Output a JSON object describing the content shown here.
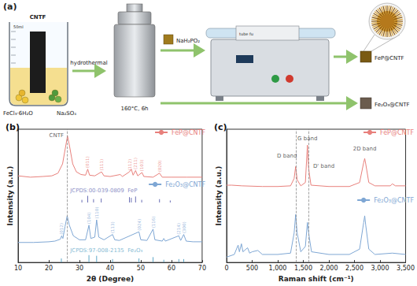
{
  "diagram": {
    "panel_label": "(a)",
    "beaker_label": "CNTF",
    "volume": "50ml",
    "reagents": [
      "FeCl₃·6H₂O",
      "Na₂SO₄"
    ],
    "process": "hydrothermal",
    "conditions": "160°C, 6h",
    "phosphorus_source": "NaH₂PO₂",
    "furnace_label": "tube fu",
    "products": [
      "FeP@CNTF",
      "Fe₂O₃@CNTF"
    ]
  },
  "chart_data": [
    {
      "type": "line",
      "panel_label": "(b)",
      "x_label": "2θ (Degree)",
      "y_label": "Intensity (a.u.)",
      "xlim": [
        10,
        70
      ],
      "xticks": [
        10,
        20,
        30,
        40,
        50,
        60,
        70
      ],
      "ylim": [
        0,
        100
      ],
      "tick_labels": "x",
      "grid": false,
      "legend": "upper right",
      "guides": [
        26
      ],
      "annotations": [
        {
          "text": "CNTF",
          "x": 22.5,
          "y": 95
        }
      ],
      "series": [
        {
          "name": "FeP@CNTF",
          "color": "#e8807c",
          "x": [
            10,
            14,
            18,
            21,
            23,
            24.5,
            25.5,
            26.1,
            26.8,
            27.8,
            29,
            30.5,
            32,
            32.7,
            33.3,
            35,
            37.2,
            38,
            40,
            43.3,
            44,
            46.3,
            46.9,
            47.5,
            48.3,
            49,
            50.4,
            51,
            54,
            56.1,
            57,
            60,
            65,
            70
          ],
          "values": [
            65,
            64,
            64.5,
            65,
            67,
            74,
            87,
            95,
            87,
            74,
            68,
            66,
            65.5,
            70,
            65.5,
            65,
            68,
            65,
            64.5,
            66,
            64.5,
            68,
            70,
            65.5,
            69,
            65,
            67.5,
            64.5,
            64,
            67,
            64,
            64,
            64,
            64
          ],
          "peak_labels": [
            {
              "text": "(011)",
              "x": 32.7,
              "y": 70
            },
            {
              "text": "(111)",
              "x": 37.2,
              "y": 68
            },
            {
              "text": "(112)",
              "x": 46.3,
              "y": 68
            },
            {
              "text": "(211)",
              "x": 48.3,
              "y": 69
            },
            {
              "text": "(103)",
              "x": 50.4,
              "y": 67.5
            },
            {
              "text": "(020)",
              "x": 56.1,
              "y": 67
            }
          ]
        },
        {
          "name": "Fe₂O₃@CNTF",
          "color": "#7fa7d4",
          "x": [
            10,
            15,
            20,
            22,
            23.8,
            24.2,
            24.6,
            25.3,
            26,
            26.7,
            28,
            30,
            32,
            33.1,
            33.7,
            35,
            35.6,
            36.3,
            38,
            40.8,
            41.5,
            43,
            49.4,
            50,
            52,
            54,
            54.6,
            57,
            57.5,
            58,
            62.4,
            63,
            64,
            64.8,
            67,
            70
          ],
          "values": [
            15,
            15,
            15.5,
            16,
            17.5,
            20,
            18,
            27,
            35,
            28,
            20,
            17,
            17,
            28,
            18,
            19,
            32,
            19,
            17,
            21,
            17,
            16.5,
            23,
            17,
            16.5,
            25,
            17,
            16,
            18,
            16,
            20,
            16.5,
            21,
            16,
            15.5,
            15.5
          ],
          "peak_labels": [
            {
              "text": "(012)",
              "x": 24.2,
              "y": 20
            },
            {
              "text": "(104)",
              "x": 33.1,
              "y": 28
            },
            {
              "text": "(110)",
              "x": 35.6,
              "y": 32
            },
            {
              "text": "(113)",
              "x": 40.8,
              "y": 21
            },
            {
              "text": "(024)",
              "x": 49.4,
              "y": 23
            },
            {
              "text": "(116)",
              "x": 54,
              "y": 25
            },
            {
              "text": "(214)",
              "x": 62.4,
              "y": 20
            },
            {
              "text": "(300)",
              "x": 64,
              "y": 21
            }
          ]
        }
      ],
      "references": [
        {
          "label": "JCPDS:00-039-0809  FeP",
          "label_x": 27,
          "label_y": 54,
          "color": "#6a6fb5",
          "base": 45,
          "x": [
            30.8,
            32.7,
            34.6,
            37.1,
            46.3,
            46.9,
            48.3,
            50.3,
            56.1,
            59.6
          ],
          "values": [
            47,
            50,
            47.5,
            48,
            49,
            48.5,
            49.5,
            47,
            47.5,
            46.5
          ]
        },
        {
          "label": "JCPDS:97-008-2135  Fe₂O₃",
          "label_x": 27,
          "label_y": 9,
          "color": "#5fa8c8",
          "base": 0,
          "x": [
            24.1,
            33.1,
            35.6,
            40.8,
            49.4,
            54.0,
            57.5,
            62.4,
            64.0
          ],
          "values": [
            3,
            5.5,
            5,
            2.5,
            3,
            4,
            2,
            2.5,
            2.5
          ]
        }
      ]
    },
    {
      "type": "line",
      "panel_label": "(c)",
      "x_label": "Raman shift (cm⁻¹)",
      "y_label": "Intensity (a.u.)",
      "xlim": [
        0,
        3500
      ],
      "xticks": [
        0,
        500,
        1000,
        1500,
        2000,
        2500,
        3000,
        3500
      ],
      "ylim": [
        0,
        100
      ],
      "tick_labels": "x",
      "grid": false,
      "legend": "upper right",
      "guides": [
        1350,
        1600
      ],
      "annotations": [
        {
          "text": "D band",
          "x": 1180,
          "y": 80
        },
        {
          "text": "G band",
          "x": 1580,
          "y": 93
        },
        {
          "text": "D' band",
          "x": 1900,
          "y": 72
        },
        {
          "text": "2D band",
          "x": 2700,
          "y": 85
        }
      ],
      "series": [
        {
          "name": "FeP@CNTF",
          "color": "#e8807c",
          "x": [
            0,
            100,
            300,
            700,
            1000,
            1250,
            1320,
            1350,
            1380,
            1450,
            1540,
            1580,
            1600,
            1620,
            1650,
            2000,
            2400,
            2600,
            2680,
            2700,
            2720,
            2780,
            2900,
            3200,
            3240,
            3300,
            3500
          ],
          "values": [
            58,
            58,
            57.5,
            57,
            57,
            57.5,
            63,
            72,
            62,
            57.5,
            60,
            88,
            72,
            66,
            58,
            57,
            57,
            60,
            75,
            78,
            74,
            60,
            57.5,
            57.5,
            59,
            57.5,
            57.5
          ]
        },
        {
          "name": "Fe₂O₃@CNTF",
          "color": "#7fa7d4",
          "x": [
            0,
            150,
            225,
            250,
            290,
            320,
            410,
            450,
            500,
            610,
            700,
            1000,
            1250,
            1320,
            1350,
            1380,
            1450,
            1540,
            1580,
            1605,
            1620,
            1660,
            2000,
            2400,
            2600,
            2680,
            2700,
            2720,
            2780,
            2900,
            3240,
            3500
          ],
          "values": [
            4,
            6,
            13,
            8,
            14,
            8,
            11,
            7,
            8,
            9,
            6,
            6,
            7,
            22,
            36,
            22,
            8,
            12,
            30,
            22,
            18,
            8,
            6,
            6,
            10,
            30,
            35,
            28,
            10,
            6,
            7,
            6
          ]
        }
      ]
    }
  ]
}
